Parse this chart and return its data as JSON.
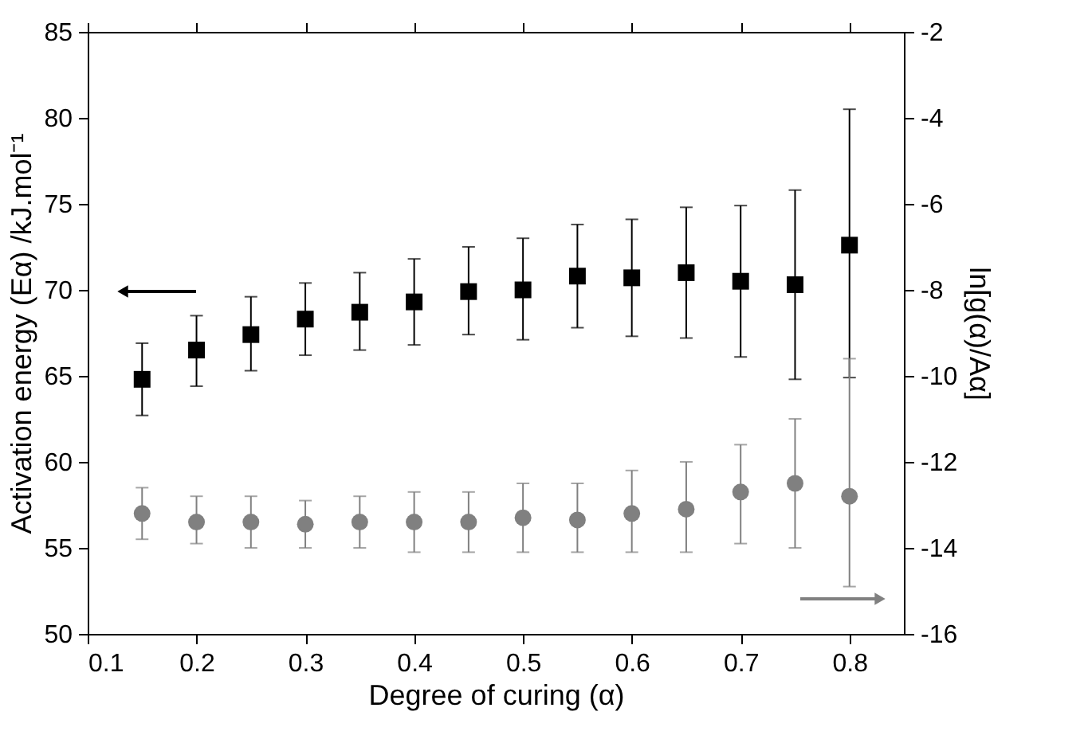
{
  "chart_data": {
    "type": "scatter",
    "xlabel": "Degree of curing (α)",
    "ylabel": "Activation energy (Eα) /kJ.mol⁻¹",
    "y2label": "ln[g(α)/Aα]",
    "x": [
      0.15,
      0.2,
      0.25,
      0.3,
      0.35,
      0.4,
      0.45,
      0.5,
      0.55,
      0.6,
      0.65,
      0.7,
      0.75,
      0.8
    ],
    "xlim": [
      0.1,
      0.85
    ],
    "xticks": [
      0.1,
      0.2,
      0.3,
      0.4,
      0.5,
      0.6,
      0.7,
      0.8
    ],
    "ylim": [
      50,
      85
    ],
    "yticks": [
      50,
      55,
      60,
      65,
      70,
      75,
      80,
      85
    ],
    "y2lim": [
      -16,
      -2
    ],
    "y2ticks": [
      -16,
      -14,
      -12,
      -10,
      -8,
      -6,
      -4,
      -2
    ],
    "grid": false,
    "series": [
      {
        "color": "#000000",
        "marker": "square",
        "values": [
          64.8,
          66.5,
          67.4,
          68.3,
          68.7,
          69.3,
          69.9,
          70.0,
          70.8,
          70.7,
          71.0,
          70.5,
          70.3,
          72.6
        ],
        "errors": [
          [
            62.7,
            66.9
          ],
          [
            64.4,
            68.5
          ],
          [
            65.3,
            69.6
          ],
          [
            66.2,
            70.4
          ],
          [
            66.5,
            71.0
          ],
          [
            66.8,
            71.8
          ],
          [
            67.4,
            72.5
          ],
          [
            67.1,
            73.0
          ],
          [
            67.8,
            73.8
          ],
          [
            67.3,
            74.1
          ],
          [
            67.2,
            74.8
          ],
          [
            66.1,
            74.9
          ],
          [
            64.8,
            75.8
          ],
          [
            64.9,
            80.5
          ]
        ]
      },
      {
        "color": "#808080",
        "marker": "circle",
        "axis": "y2",
        "values": [
          -13.2,
          -13.4,
          -13.4,
          -13.45,
          -13.4,
          -13.4,
          -13.4,
          -13.3,
          -13.35,
          -13.2,
          -13.1,
          -12.7,
          -12.5,
          -12.8
        ],
        "errors": [
          [
            -13.8,
            -12.6
          ],
          [
            -13.9,
            -12.8
          ],
          [
            -14.0,
            -12.8
          ],
          [
            -14.0,
            -12.9
          ],
          [
            -14.0,
            -12.8
          ],
          [
            -14.1,
            -12.7
          ],
          [
            -14.1,
            -12.7
          ],
          [
            -14.1,
            -12.5
          ],
          [
            -14.1,
            -12.5
          ],
          [
            -14.1,
            -12.2
          ],
          [
            -14.1,
            -12.0
          ],
          [
            -13.9,
            -11.6
          ],
          [
            -14.0,
            -11.0
          ],
          [
            -14.9,
            -9.6
          ]
        ]
      }
    ]
  }
}
